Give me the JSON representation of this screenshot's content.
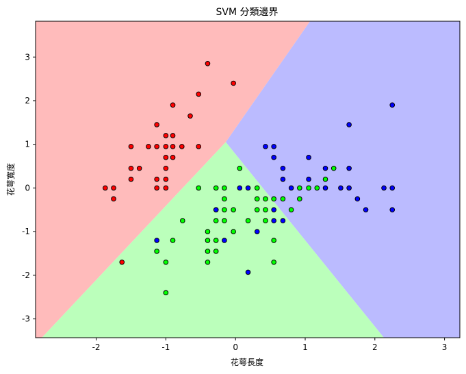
{
  "chart_data": {
    "type": "scatter",
    "title": "SVM 分類邊界",
    "xlabel": "花萼長度",
    "ylabel": "花萼寬度",
    "xlim": [
      -2.87,
      3.22
    ],
    "ylim": [
      -3.43,
      3.82
    ],
    "xticks": [
      -2,
      -1,
      0,
      1,
      2,
      3
    ],
    "yticks": [
      -3,
      -2,
      -1,
      0,
      1,
      2,
      3
    ],
    "xtick_labels": [
      "-2",
      "-1",
      "0",
      "1",
      "2",
      "3"
    ],
    "ytick_labels": [
      "-3",
      "-2",
      "-1",
      "0",
      "1",
      "2",
      "3"
    ],
    "grid": false,
    "regions": [
      {
        "name": "red",
        "color": "#ffbbbb"
      },
      {
        "name": "green",
        "color": "#bbffbb"
      },
      {
        "name": "blue",
        "color": "#bbbbff"
      }
    ],
    "boundaries": {
      "vertex": [
        -0.14,
        1.05
      ],
      "red_blue_top_x": 1.07,
      "red_green_bottom_x": -2.78,
      "green_blue_bottom_x": 2.13
    },
    "series": [
      {
        "color": "#ff0000",
        "points": [
          [
            -1.87,
            0
          ],
          [
            -1.75,
            0
          ],
          [
            -1.75,
            -0.25
          ],
          [
            -1.5,
            0.95
          ],
          [
            -1.5,
            0.45
          ],
          [
            -1.5,
            0.2
          ],
          [
            -1.38,
            0.45
          ],
          [
            -1.25,
            0.95
          ],
          [
            -1.13,
            1.45
          ],
          [
            -1.13,
            0.95
          ],
          [
            -1.13,
            0.2
          ],
          [
            -1.13,
            0
          ],
          [
            -1,
            1.2
          ],
          [
            -1,
            0.95
          ],
          [
            -1,
            0.7
          ],
          [
            -1,
            0.45
          ],
          [
            -1,
            0.2
          ],
          [
            -1,
            0
          ],
          [
            -0.9,
            1.9
          ],
          [
            -0.9,
            1.2
          ],
          [
            -0.9,
            0.95
          ],
          [
            -0.9,
            0.7
          ],
          [
            -0.77,
            0.95
          ],
          [
            -0.65,
            1.65
          ],
          [
            -0.53,
            2.15
          ],
          [
            -0.53,
            0.95
          ],
          [
            -0.4,
            2.85
          ],
          [
            -0.03,
            2.4
          ],
          [
            -1.63,
            -1.7
          ]
        ]
      },
      {
        "color": "#00ff00",
        "points": [
          [
            0.06,
            0.45
          ],
          [
            -0.53,
            0
          ],
          [
            -0.28,
            0
          ],
          [
            -0.16,
            0
          ],
          [
            -0.16,
            -0.25
          ],
          [
            0.31,
            0
          ],
          [
            0.31,
            -0.25
          ],
          [
            0.31,
            -0.5
          ],
          [
            0.43,
            -0.25
          ],
          [
            0.43,
            -0.5
          ],
          [
            0.43,
            -0.75
          ],
          [
            0.55,
            -0.25
          ],
          [
            0.55,
            -1.2
          ],
          [
            0.55,
            -1.7
          ],
          [
            0.68,
            -0.25
          ],
          [
            0.8,
            -0.5
          ],
          [
            0.92,
            0
          ],
          [
            0.92,
            -0.25
          ],
          [
            1.05,
            0
          ],
          [
            1.17,
            0
          ],
          [
            1.29,
            0.2
          ],
          [
            1.41,
            0.45
          ],
          [
            -0.28,
            -0.5
          ],
          [
            -0.28,
            -0.75
          ],
          [
            -0.16,
            -0.5
          ],
          [
            -0.16,
            -0.75
          ],
          [
            -0.03,
            -0.5
          ],
          [
            -0.03,
            -1
          ],
          [
            0.18,
            -0.75
          ],
          [
            -0.4,
            -1
          ],
          [
            -0.4,
            -1.2
          ],
          [
            -0.4,
            -1.45
          ],
          [
            -0.4,
            -1.7
          ],
          [
            -0.28,
            -1.2
          ],
          [
            -0.28,
            -1.45
          ],
          [
            -0.76,
            -0.75
          ],
          [
            -0.9,
            -1.2
          ],
          [
            -1.13,
            -1.45
          ],
          [
            -1,
            -1.7
          ],
          [
            -1,
            -2.4
          ]
        ]
      },
      {
        "color": "#0000ff",
        "points": [
          [
            2.25,
            1.9
          ],
          [
            1.63,
            1.45
          ],
          [
            0.43,
            0.95
          ],
          [
            0.55,
            0.95
          ],
          [
            0.55,
            0.7
          ],
          [
            0.68,
            0.45
          ],
          [
            0.68,
            0.2
          ],
          [
            0.8,
            0
          ],
          [
            1.05,
            0.7
          ],
          [
            1.05,
            0.2
          ],
          [
            1.29,
            0.45
          ],
          [
            1.29,
            0
          ],
          [
            1.51,
            0
          ],
          [
            1.63,
            0.45
          ],
          [
            1.63,
            0
          ],
          [
            1.75,
            -0.25
          ],
          [
            1.87,
            -0.5
          ],
          [
            2.13,
            0
          ],
          [
            2.25,
            0
          ],
          [
            2.25,
            -0.5
          ],
          [
            0.06,
            0
          ],
          [
            0.18,
            0
          ],
          [
            0.55,
            -0.5
          ],
          [
            0.55,
            -0.75
          ],
          [
            0.68,
            -0.75
          ],
          [
            0.31,
            -1
          ],
          [
            -0.16,
            -1.2
          ],
          [
            -1.13,
            -1.2
          ],
          [
            0.18,
            -1.93
          ],
          [
            -0.28,
            -0.5
          ]
        ]
      }
    ]
  }
}
